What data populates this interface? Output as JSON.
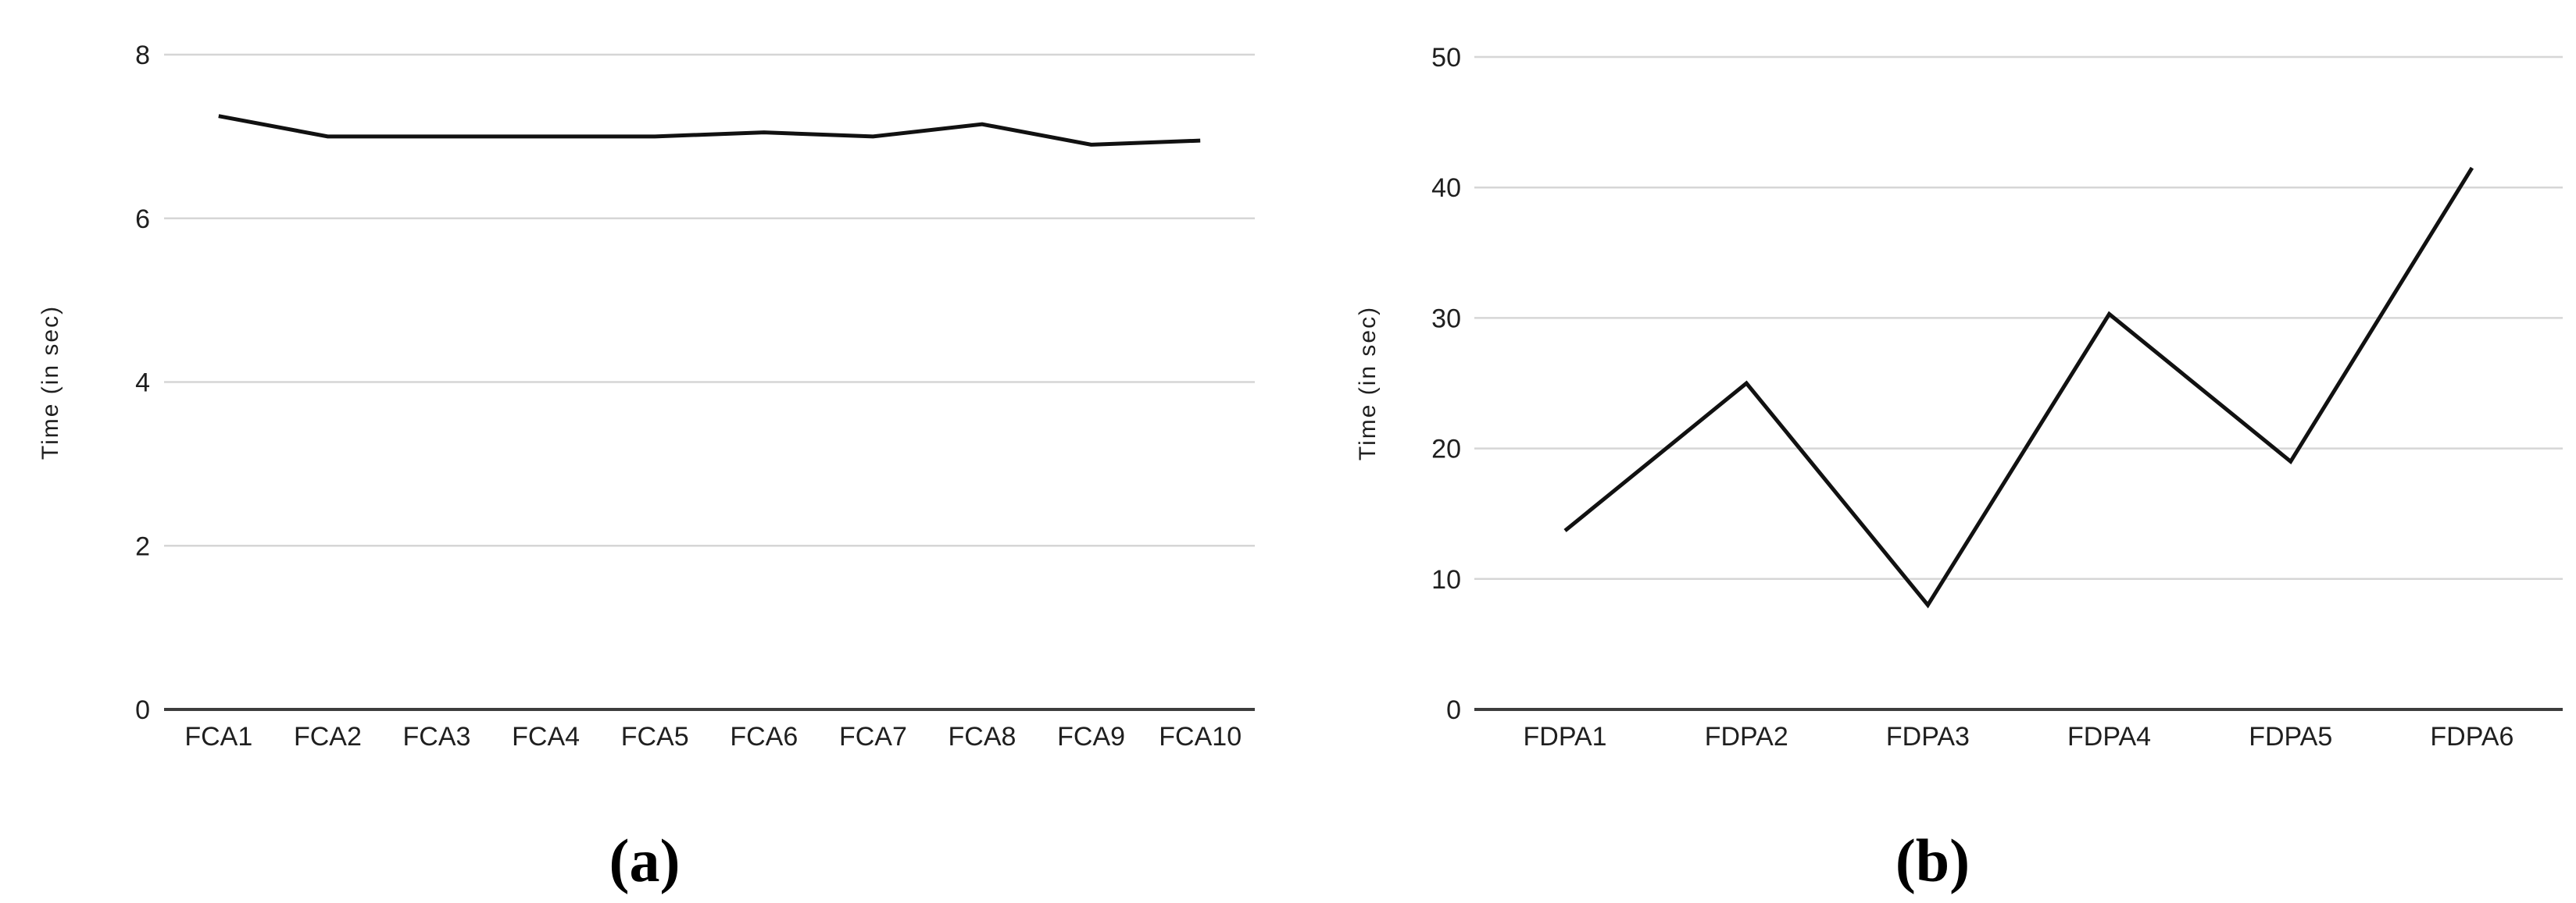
{
  "figure": {
    "background": "#ffffff",
    "caption_a": "(a)",
    "caption_b": "(b)"
  },
  "chart_data": [
    {
      "id": "a",
      "type": "line",
      "title": "",
      "caption": "(a)",
      "xlabel": "",
      "ylabel": "Time (in sec)",
      "categories": [
        "FCA1",
        "FCA2",
        "FCA3",
        "FCA4",
        "FCA5",
        "FCA6",
        "FCA7",
        "FCA8",
        "FCA9",
        "FCA10"
      ],
      "values": [
        7.25,
        7.0,
        7.0,
        7.0,
        7.0,
        7.05,
        7.0,
        7.15,
        6.9,
        6.95
      ],
      "ylim": [
        0,
        8
      ],
      "yticks": [
        0,
        2,
        4,
        6,
        8
      ],
      "grid": true,
      "legend": "none",
      "line_color": "#111111",
      "gridline_color": "#d6d6d6",
      "axis_color": "#3d3d3d",
      "text_color": "#1f1f1f"
    },
    {
      "id": "b",
      "type": "line",
      "title": "",
      "caption": "(b)",
      "xlabel": "",
      "ylabel": "Time (in sec)",
      "categories": [
        "FDPA1",
        "FDPA2",
        "FDPA3",
        "FDPA4",
        "FDPA5",
        "FDPA6"
      ],
      "values": [
        13.7,
        25,
        8,
        30.3,
        19,
        41.5
      ],
      "ylim": [
        0,
        50
      ],
      "yticks": [
        0,
        10,
        20,
        30,
        40,
        50
      ],
      "grid": true,
      "legend": "none",
      "line_color": "#111111",
      "gridline_color": "#d6d6d6",
      "axis_color": "#3d3d3d",
      "text_color": "#1f1f1f"
    }
  ]
}
